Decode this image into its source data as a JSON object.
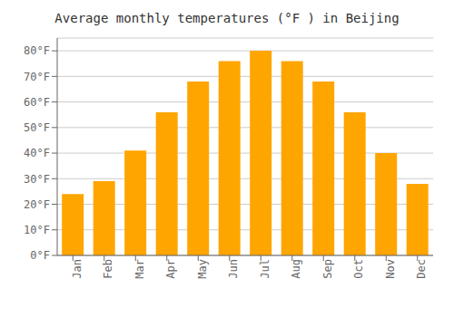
{
  "chart_data": {
    "type": "bar",
    "title": "Average monthly temperatures (°F ) in Beijing",
    "categories": [
      "Jan",
      "Feb",
      "Mar",
      "Apr",
      "May",
      "Jun",
      "Jul",
      "Aug",
      "Sep",
      "Oct",
      "Nov",
      "Dec"
    ],
    "values": [
      24,
      29,
      41,
      56,
      68,
      76,
      80,
      76,
      68,
      56,
      40,
      28
    ],
    "color": "#FFA500",
    "ylim": [
      0,
      85
    ],
    "yticks": [
      {
        "value": 0,
        "label": "0°F"
      },
      {
        "value": 10,
        "label": "10°F"
      },
      {
        "value": 20,
        "label": "20°F"
      },
      {
        "value": 30,
        "label": "30°F"
      },
      {
        "value": 40,
        "label": "40°F"
      },
      {
        "value": 50,
        "label": "50°F"
      },
      {
        "value": 60,
        "label": "60°F"
      },
      {
        "value": 70,
        "label": "70°F"
      },
      {
        "value": 80,
        "label": "80°F"
      }
    ],
    "grid": true
  }
}
